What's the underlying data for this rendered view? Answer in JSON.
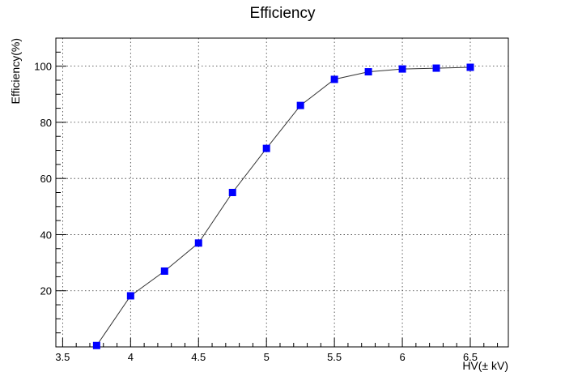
{
  "chart_data": {
    "type": "line",
    "title": "Efficiency",
    "xlabel": "HV(± kV)",
    "ylabel": "Efficiency(%)",
    "xlim": [
      3.45,
      6.78
    ],
    "ylim": [
      0,
      110
    ],
    "x_ticks": [
      "3.5",
      "4",
      "4.5",
      "5",
      "5.5",
      "6",
      "6.5"
    ],
    "y_ticks": [
      "20",
      "40",
      "60",
      "80",
      "100"
    ],
    "grid": true,
    "marker_color": "#0000ff",
    "line_color": "#333333",
    "series": [
      {
        "x": [
          3.75,
          4.0,
          4.25,
          4.5,
          4.75,
          5.0,
          5.25,
          5.5,
          5.75,
          6.0,
          6.25,
          6.5
        ],
        "values": [
          0.5,
          18.2,
          27.0,
          37.0,
          55.0,
          70.7,
          86.0,
          95.3,
          98.0,
          99.0,
          99.3,
          99.6
        ]
      }
    ]
  }
}
